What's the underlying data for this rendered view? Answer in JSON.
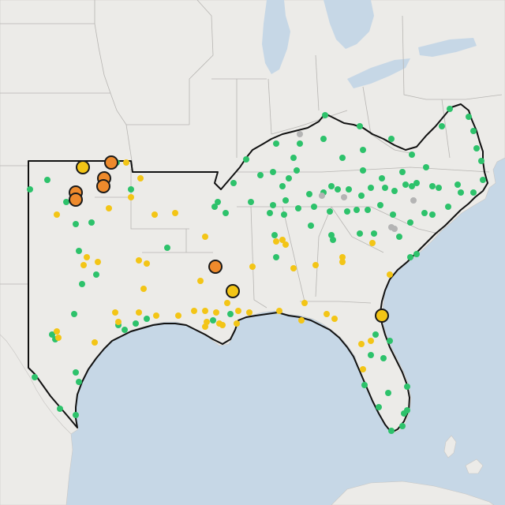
{
  "map": {
    "colors": {
      "water": "#c6d7e6",
      "land": "#ecebe8",
      "state_line": "#b7b5b2",
      "region_outline": "#111111",
      "status_good": "#2dc26b",
      "status_moderate": "#f3c516",
      "status_high": "#ee8a2c",
      "status_unknown": "#b4b4b4"
    },
    "statuses": [
      "good",
      "moderate",
      "high",
      "unknown"
    ]
  }
}
